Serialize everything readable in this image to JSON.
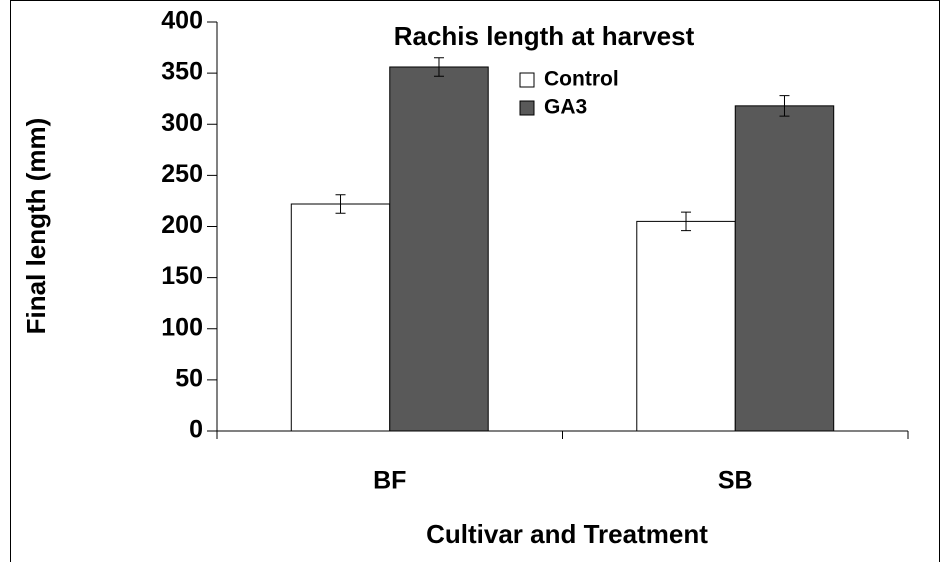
{
  "chart_data": {
    "type": "bar",
    "title": "Rachis length at harvest",
    "xlabel": "Cultivar and Treatment",
    "ylabel": "Final length (mm)",
    "categories": [
      "BF",
      "SB"
    ],
    "series": [
      {
        "name": "Control",
        "color": "#ffffff",
        "values": [
          222,
          205
        ],
        "errors": [
          9,
          9
        ]
      },
      {
        "name": "GA3",
        "color": "#595959",
        "values": [
          356,
          318
        ],
        "errors": [
          9,
          10
        ]
      }
    ],
    "ylim": [
      0,
      400
    ],
    "yticks": [
      0,
      50,
      100,
      150,
      200,
      250,
      300,
      350,
      400
    ],
    "legend": "top-center"
  }
}
